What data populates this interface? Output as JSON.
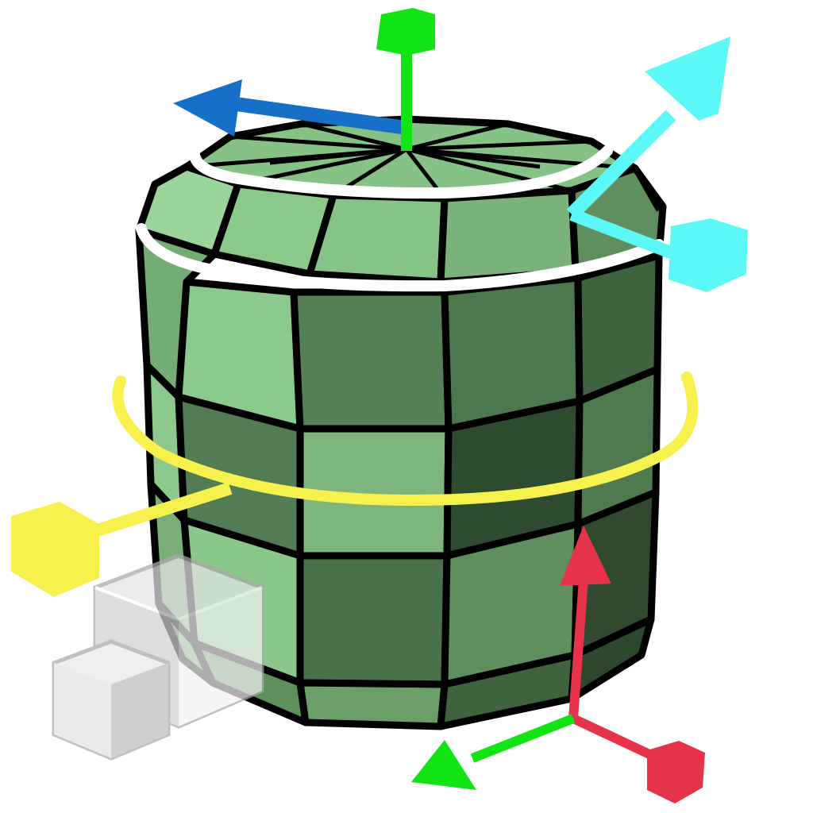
{
  "scene": {
    "object": "cylinder-mesh",
    "gizmos": [
      "scale-gizmo-cyan",
      "rotate-gizmo-yellow",
      "transform-gizmo-top",
      "transform-gizmo-bottom"
    ],
    "colors": {
      "mesh_light": "#8cc98c",
      "mesh_mid": "#6fa56f",
      "mesh_dark": "#4a744a",
      "mesh_darkest": "#2e4a2e",
      "edge": "#000000",
      "selection_loop": "#ffffff",
      "axis_y": "#12e312",
      "axis_x": "#e5334b",
      "axis_z": "#1670c7",
      "scale_gizmo": "#5cf7f7",
      "rotate_gizmo": "#f6f14c",
      "ghost_cube": "#d9d9d9"
    }
  }
}
